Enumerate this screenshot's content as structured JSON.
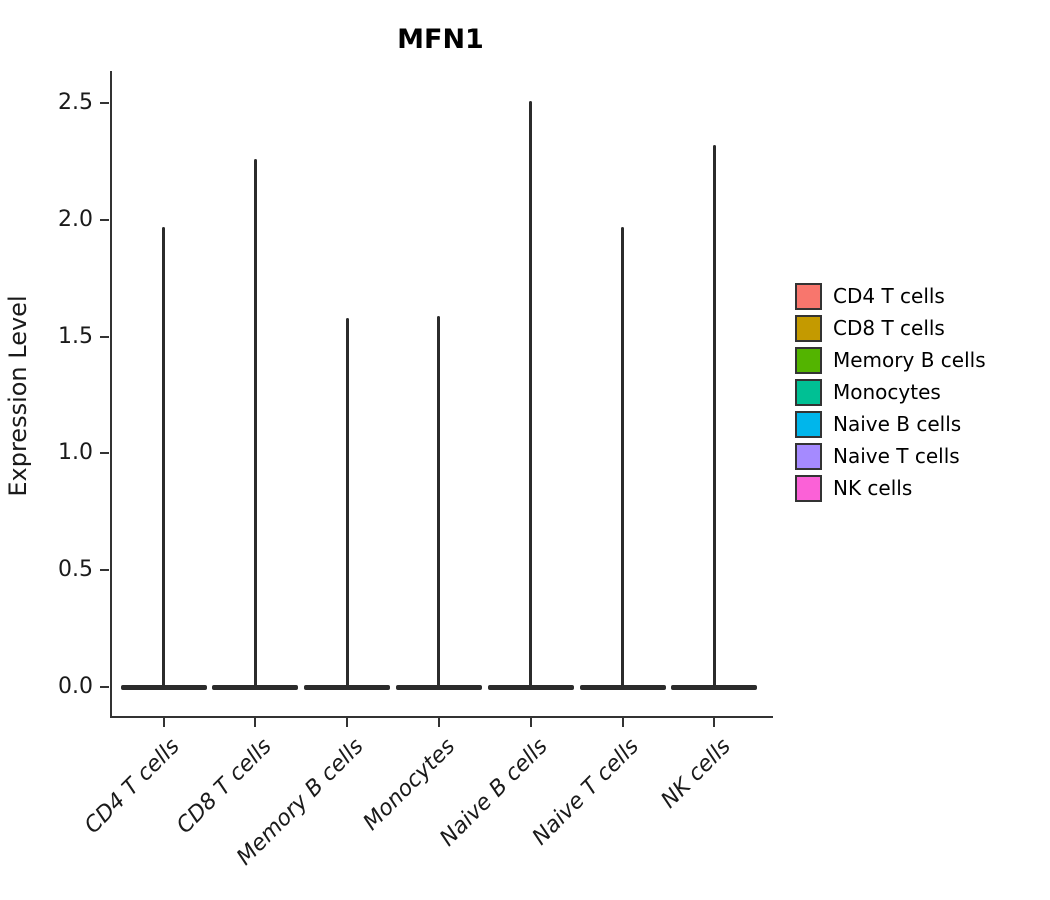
{
  "chart_data": {
    "type": "violin",
    "title": "MFN1",
    "ylabel": "Expression Level",
    "xlabel": "",
    "ylim": [
      -0.12,
      2.62
    ],
    "grid": false,
    "legend_position": "right",
    "axis_color": "#333333",
    "violin_stroke_color": "#2b2b2b",
    "y_ticks": [
      {
        "label": "0.0",
        "value": 0.0
      },
      {
        "label": "0.5",
        "value": 0.5
      },
      {
        "label": "1.0",
        "value": 1.0
      },
      {
        "label": "1.5",
        "value": 1.5
      },
      {
        "label": "2.0",
        "value": 2.0
      },
      {
        "label": "2.5",
        "value": 2.5
      }
    ],
    "categories": [
      "CD4 T cells",
      "CD8 T cells",
      "Memory B cells",
      "Monocytes",
      "Naive B cells",
      "Naive T cells",
      "NK cells"
    ],
    "violins": [
      {
        "category": "CD4 T cells",
        "color": "#F8766D",
        "density_peak_value": 0.0,
        "max_expression": 1.97
      },
      {
        "category": "CD8 T cells",
        "color": "#C49A00",
        "density_peak_value": 0.0,
        "max_expression": 2.26
      },
      {
        "category": "Memory B cells",
        "color": "#53B400",
        "density_peak_value": 0.0,
        "max_expression": 1.58
      },
      {
        "category": "Monocytes",
        "color": "#00C094",
        "density_peak_value": 0.0,
        "max_expression": 1.59
      },
      {
        "category": "Naive B cells",
        "color": "#00B6EB",
        "density_peak_value": 0.0,
        "max_expression": 2.51
      },
      {
        "category": "Naive T cells",
        "color": "#A58AFF",
        "density_peak_value": 0.0,
        "max_expression": 1.97
      },
      {
        "category": "NK cells",
        "color": "#FB61D7",
        "density_peak_value": 0.0,
        "max_expression": 2.32
      }
    ],
    "legend": [
      {
        "label": "CD4 T cells",
        "color": "#F8766D"
      },
      {
        "label": "CD8 T cells",
        "color": "#C49A00"
      },
      {
        "label": "Memory B cells",
        "color": "#53B400"
      },
      {
        "label": "Monocytes",
        "color": "#00C094"
      },
      {
        "label": "Naive B cells",
        "color": "#00B6EB"
      },
      {
        "label": "Naive T cells",
        "color": "#A58AFF"
      },
      {
        "label": "NK cells",
        "color": "#FB61D7"
      }
    ]
  }
}
